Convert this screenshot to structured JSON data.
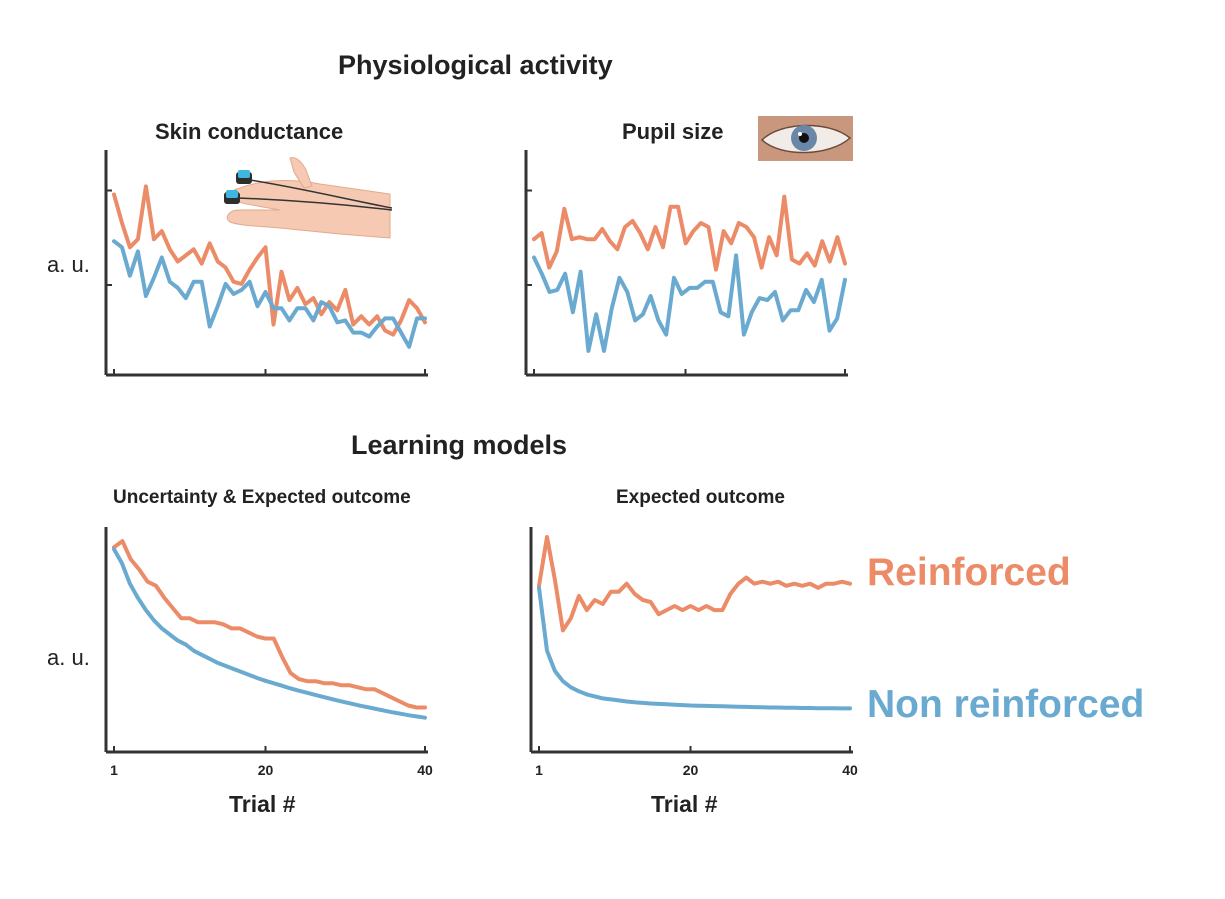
{
  "sections": {
    "physiological_title": "Physiological activity",
    "learning_title": "Learning models"
  },
  "colors": {
    "reinforced": "#EC8B67",
    "non_reinforced": "#6AAAD0",
    "axis": "#333333"
  },
  "icons": {
    "skin_conductance": "hand-electrodes-icon",
    "pupil": "eye-icon"
  },
  "legend": {
    "reinforced": "Reinforced",
    "non_reinforced": "Non reinforced"
  },
  "chart_data": [
    {
      "type": "line",
      "title": "Skin conductance",
      "ylabel": "a. u.",
      "xlabel": "",
      "x_ticks": [
        1,
        20,
        40
      ],
      "x_tick_labels": [
        "",
        "",
        ""
      ],
      "xlim": [
        0,
        40
      ],
      "ylim": [
        0,
        10
      ],
      "series": [
        {
          "name": "Reinforced",
          "values": [
            8.2,
            6.8,
            5.6,
            6,
            8.6,
            6,
            6.4,
            5.5,
            4.9,
            5.2,
            5.5,
            4.8,
            5.8,
            4.9,
            4.6,
            3.9,
            3.8,
            4.5,
            5.1,
            5.6,
            1.8,
            4.4,
            3,
            3.6,
            2.8,
            3.1,
            2.3,
            2.9,
            2.5,
            3.5,
            1.8,
            2.2,
            1.8,
            2.2,
            1.5,
            1.3,
            2,
            3,
            2.6,
            1.9
          ]
        },
        {
          "name": "Non reinforced",
          "values": [
            5.9,
            5.6,
            4.2,
            5.4,
            3.2,
            4.1,
            5.1,
            3.9,
            3.6,
            3.1,
            3.9,
            3.9,
            1.7,
            2.7,
            3.8,
            3.3,
            3.5,
            3.9,
            2.7,
            3.4,
            2.6,
            2.6,
            2,
            2.6,
            2.6,
            2,
            2.9,
            2.7,
            1.9,
            2,
            1.4,
            1.4,
            1.2,
            1.7,
            2.1,
            2.1,
            1.4,
            0.7,
            2.1,
            2.1
          ]
        }
      ]
    },
    {
      "type": "line",
      "title": "Pupil size",
      "ylabel": "",
      "xlabel": "",
      "x_ticks": [
        1,
        20,
        40
      ],
      "x_tick_labels": [
        "",
        "",
        ""
      ],
      "xlim": [
        0,
        40
      ],
      "ylim": [
        0,
        10
      ],
      "series": [
        {
          "name": "Reinforced",
          "values": [
            6,
            6.3,
            4.6,
            5.4,
            7.5,
            6,
            6.1,
            6,
            6,
            6.5,
            5.9,
            5.5,
            6.6,
            6.9,
            6.3,
            5.5,
            6.6,
            5.6,
            7.6,
            7.6,
            5.8,
            6.4,
            6.8,
            6.6,
            4.5,
            6.4,
            5.8,
            6.8,
            6.6,
            6.1,
            4.6,
            6.1,
            5.2,
            8.1,
            5,
            4.8,
            5.3,
            4.7,
            5.9,
            4.9,
            6.1,
            4.8
          ]
        },
        {
          "name": "Non reinforced",
          "values": [
            5.1,
            4.3,
            3.4,
            3.5,
            4.3,
            2.4,
            4.4,
            0.5,
            2.3,
            0.5,
            2.6,
            4.1,
            3.4,
            2,
            2.3,
            3.2,
            2,
            1.3,
            4.1,
            3.3,
            3.6,
            3.6,
            3.9,
            3.9,
            2.4,
            2.2,
            5.2,
            1.3,
            2.4,
            3.1,
            3,
            3.4,
            2,
            2.5,
            2.5,
            3.5,
            2.9,
            4,
            1.5,
            2.1,
            4
          ]
        }
      ]
    },
    {
      "type": "line",
      "title": "Uncertainty & Expected outcome",
      "ylabel": "a. u.",
      "xlabel": "Trial #",
      "x_ticks": [
        1,
        20,
        40
      ],
      "x_tick_labels": [
        "1",
        "20",
        "40"
      ],
      "xlim": [
        0,
        40
      ],
      "ylim": [
        0,
        10
      ],
      "series": [
        {
          "name": "Reinforced",
          "values": [
            9.4,
            9.7,
            8.8,
            8.3,
            7.7,
            7.5,
            6.9,
            6.4,
            5.9,
            5.9,
            5.7,
            5.7,
            5.7,
            5.6,
            5.4,
            5.4,
            5.2,
            5,
            4.9,
            4.9,
            4,
            3.2,
            2.9,
            2.8,
            2.8,
            2.7,
            2.7,
            2.6,
            2.6,
            2.5,
            2.4,
            2.4,
            2.2,
            2,
            1.8,
            1.6,
            1.5,
            1.5
          ]
        },
        {
          "name": "Non reinforced",
          "values": [
            9.3,
            8.6,
            7.6,
            6.9,
            6.3,
            5.8,
            5.4,
            5.1,
            4.8,
            4.6,
            4.3,
            4.1,
            3.9,
            3.7,
            3.55,
            3.4,
            3.25,
            3.1,
            2.95,
            2.82,
            2.7,
            2.58,
            2.46,
            2.35,
            2.25,
            2.15,
            2.05,
            1.95,
            1.85,
            1.76,
            1.67,
            1.58,
            1.5,
            1.42,
            1.34,
            1.26,
            1.19,
            1.12,
            1.06,
            1
          ]
        }
      ]
    },
    {
      "type": "line",
      "title": "Expected outcome",
      "ylabel": "",
      "xlabel": "Trial #",
      "x_ticks": [
        1,
        20,
        40
      ],
      "x_tick_labels": [
        "1",
        "20",
        "40"
      ],
      "xlim": [
        0,
        40
      ],
      "ylim": [
        0,
        10
      ],
      "series": [
        {
          "name": "Reinforced",
          "values": [
            7.5,
            9.9,
            7.8,
            5.3,
            5.9,
            7,
            6.3,
            6.8,
            6.6,
            7.2,
            7.2,
            7.6,
            7.1,
            6.8,
            6.7,
            6.1,
            6.3,
            6.5,
            6.3,
            6.5,
            6.3,
            6.5,
            6.3,
            6.3,
            7.1,
            7.6,
            7.9,
            7.6,
            7.7,
            7.6,
            7.7,
            7.5,
            7.6,
            7.5,
            7.6,
            7.4,
            7.6,
            7.6,
            7.7,
            7.6
          ]
        },
        {
          "name": "Non reinforced",
          "values": [
            7.4,
            4.3,
            3.3,
            2.8,
            2.5,
            2.3,
            2.15,
            2.05,
            1.95,
            1.9,
            1.85,
            1.8,
            1.76,
            1.73,
            1.7,
            1.68,
            1.66,
            1.64,
            1.62,
            1.6,
            1.59,
            1.58,
            1.57,
            1.56,
            1.55,
            1.54,
            1.53,
            1.52,
            1.51,
            1.5,
            1.5,
            1.49,
            1.49,
            1.48,
            1.48,
            1.47,
            1.47,
            1.47,
            1.46,
            1.46
          ]
        }
      ]
    }
  ]
}
